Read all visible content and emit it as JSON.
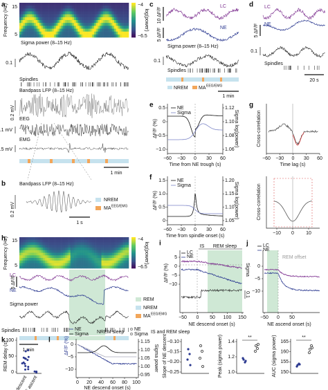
{
  "a": {
    "label": "a",
    "ylabel": "Frequency (Hz)",
    "yticks": [
      "15",
      "5"
    ],
    "cbar": [
      "−4",
      "−6.5"
    ],
    "cbar_label": "log(power)",
    "sigma": "Sigma power (8–15 Hz)",
    "sigma_scale": "0.1",
    "spindles": "Spindles",
    "lfp": "Bandpass LFP (8–15 Hz)",
    "lfp_scale": "0.2 mV",
    "eeg": "EEG",
    "eeg_scale": "0.1 mV",
    "emg": "EMG",
    "emg_scale": "0.5 mV",
    "time_scale": "1 min"
  },
  "b": {
    "label": "b",
    "lfp": "Bandpass LFP (8–15 Hz)",
    "lfp_scale": "0.2 mV",
    "time_scale": "1 s",
    "legend": [
      "NREM",
      "MA"
    ],
    "ma_sup": "EEG/EMG"
  },
  "c": {
    "label": "c",
    "lc": "LC",
    "ne": "NE",
    "lc_scale": "10 ΔF/F",
    "ne_scale": "5 ΔF/F",
    "sigma": "Sigma power (8–15 Hz)",
    "sigma_scale": "0.1",
    "spindles": "Spindles",
    "legend": [
      "NREM",
      "MA"
    ],
    "ma_sup": "EEG/EMG",
    "time_scale": "1 min"
  },
  "d": {
    "label": "d",
    "lc": "LC",
    "ne": "NE",
    "ne_scale": "5 ΔF/F",
    "sigma_scale": "0.1",
    "spindles": "Spindles",
    "time_scale": "20 s"
  },
  "e": {
    "label": "e",
    "legend": [
      "NE",
      "Sigma"
    ],
    "ylabel": "ΔF/F (%)",
    "y2label": "Sigma log(power)",
    "yticks": [
      "0.5",
      "0",
      "−0.5",
      "−1.0"
    ],
    "y2ticks": [
      "1.12",
      "1.10",
      "1.08",
      "1.06"
    ],
    "xticks": [
      "−60",
      "−30",
      "0",
      "30",
      "60"
    ],
    "xlabel": "Time from NE trough (s)"
  },
  "f": {
    "label": "f",
    "legend": [
      "NE",
      "Sigma"
    ],
    "ylabel": "ΔF/F (%)",
    "y2label": "Sigma log(power)",
    "yticks": [
      "1.5",
      "1.0",
      "0.5",
      "0"
    ],
    "y2ticks": [
      "1.20",
      "1.15",
      "1.10",
      "1.05"
    ],
    "xticks": [
      "−60",
      "−30",
      "0",
      "30",
      "60"
    ],
    "xlabel": "Time from spindle onset (s)"
  },
  "g": {
    "label": "g",
    "ylabel": "Cross-correlation",
    "xlabel": "Time lag (s)",
    "xticks": [
      "−60",
      "−30",
      "0",
      "30",
      "60"
    ],
    "xticks2": [
      "−10",
      "0",
      "10"
    ]
  },
  "h": {
    "label": "h",
    "ylabel": "Frequency (Hz)",
    "yticks": [
      "15",
      "5"
    ],
    "cbar": [
      "−4",
      "−6.5"
    ],
    "cbar_label": "log(power)",
    "lc": "LC",
    "ne": "NE",
    "ne_scale": "5 ΔF/F",
    "sigma": "Sigma power",
    "spindles": "Spindles",
    "legend": [
      "REM",
      "NREM",
      "MA"
    ],
    "ma_sup": "EEG/EMG",
    "time_scale": "1 min"
  },
  "i": {
    "label": "i",
    "legend": [
      "LC",
      "NE"
    ],
    "is": "IS",
    "rem": "REM sleep",
    "ylabel": "ΔF/F (%)",
    "yticks": [
      "5",
      "0",
      "−5",
      "−10"
    ],
    "sigma": "Sigma",
    "sigma_scale": "0.1",
    "xticks": [
      "−50",
      "0",
      "50",
      "100",
      "150"
    ],
    "xlabel": "NE descend onset (s)"
  },
  "j": {
    "label": "j",
    "legend": [
      "LC",
      "NE"
    ],
    "rem_offset": "REM offset",
    "yticks": [
      "0",
      "−5",
      "−10"
    ],
    "xticks": [
      "−50",
      "0",
      "50"
    ],
    "xlabel": "NE ascend onset (s)"
  },
  "k": {
    "label": "k",
    "ylabel": "REM delay (s)",
    "yticks": [
      "100",
      "50",
      "0"
    ],
    "categories": [
      "NE descent",
      "NE ascent"
    ]
  },
  "l": {
    "label": "l",
    "legend1": [
      "NE",
      "Sigma"
    ],
    "group1": "NREM sleep",
    "legend2": [
      "NE",
      "Sigma"
    ],
    "group2": "IS and REM sleep",
    "ylabel": "ΔF/F (%)",
    "yticks": [
      "0",
      "−5",
      "−10"
    ],
    "y2label": "Sigma power",
    "y2ticks": [
      "1.15",
      "1.10",
      "1.05",
      "1.00",
      "0.95"
    ],
    "xticks": [
      "0",
      "20",
      "40",
      "60",
      "80",
      "100"
    ],
    "xlabel": "NE descend onset (s)",
    "slope_label": "Slope of NE descent",
    "slope_ticks": [
      "−0.10",
      "−0.15",
      "−0.20",
      "−0.25"
    ],
    "peak_label": "Peak (sigma power)",
    "peak_sig": "**",
    "peak_ticks": [
      "1.4",
      "1.2",
      "1.0"
    ],
    "auc_label": "AUC (sigma power)",
    "auc_sig": "**",
    "auc_ticks": [
      "165",
      "160",
      "155",
      "150"
    ]
  }
}
